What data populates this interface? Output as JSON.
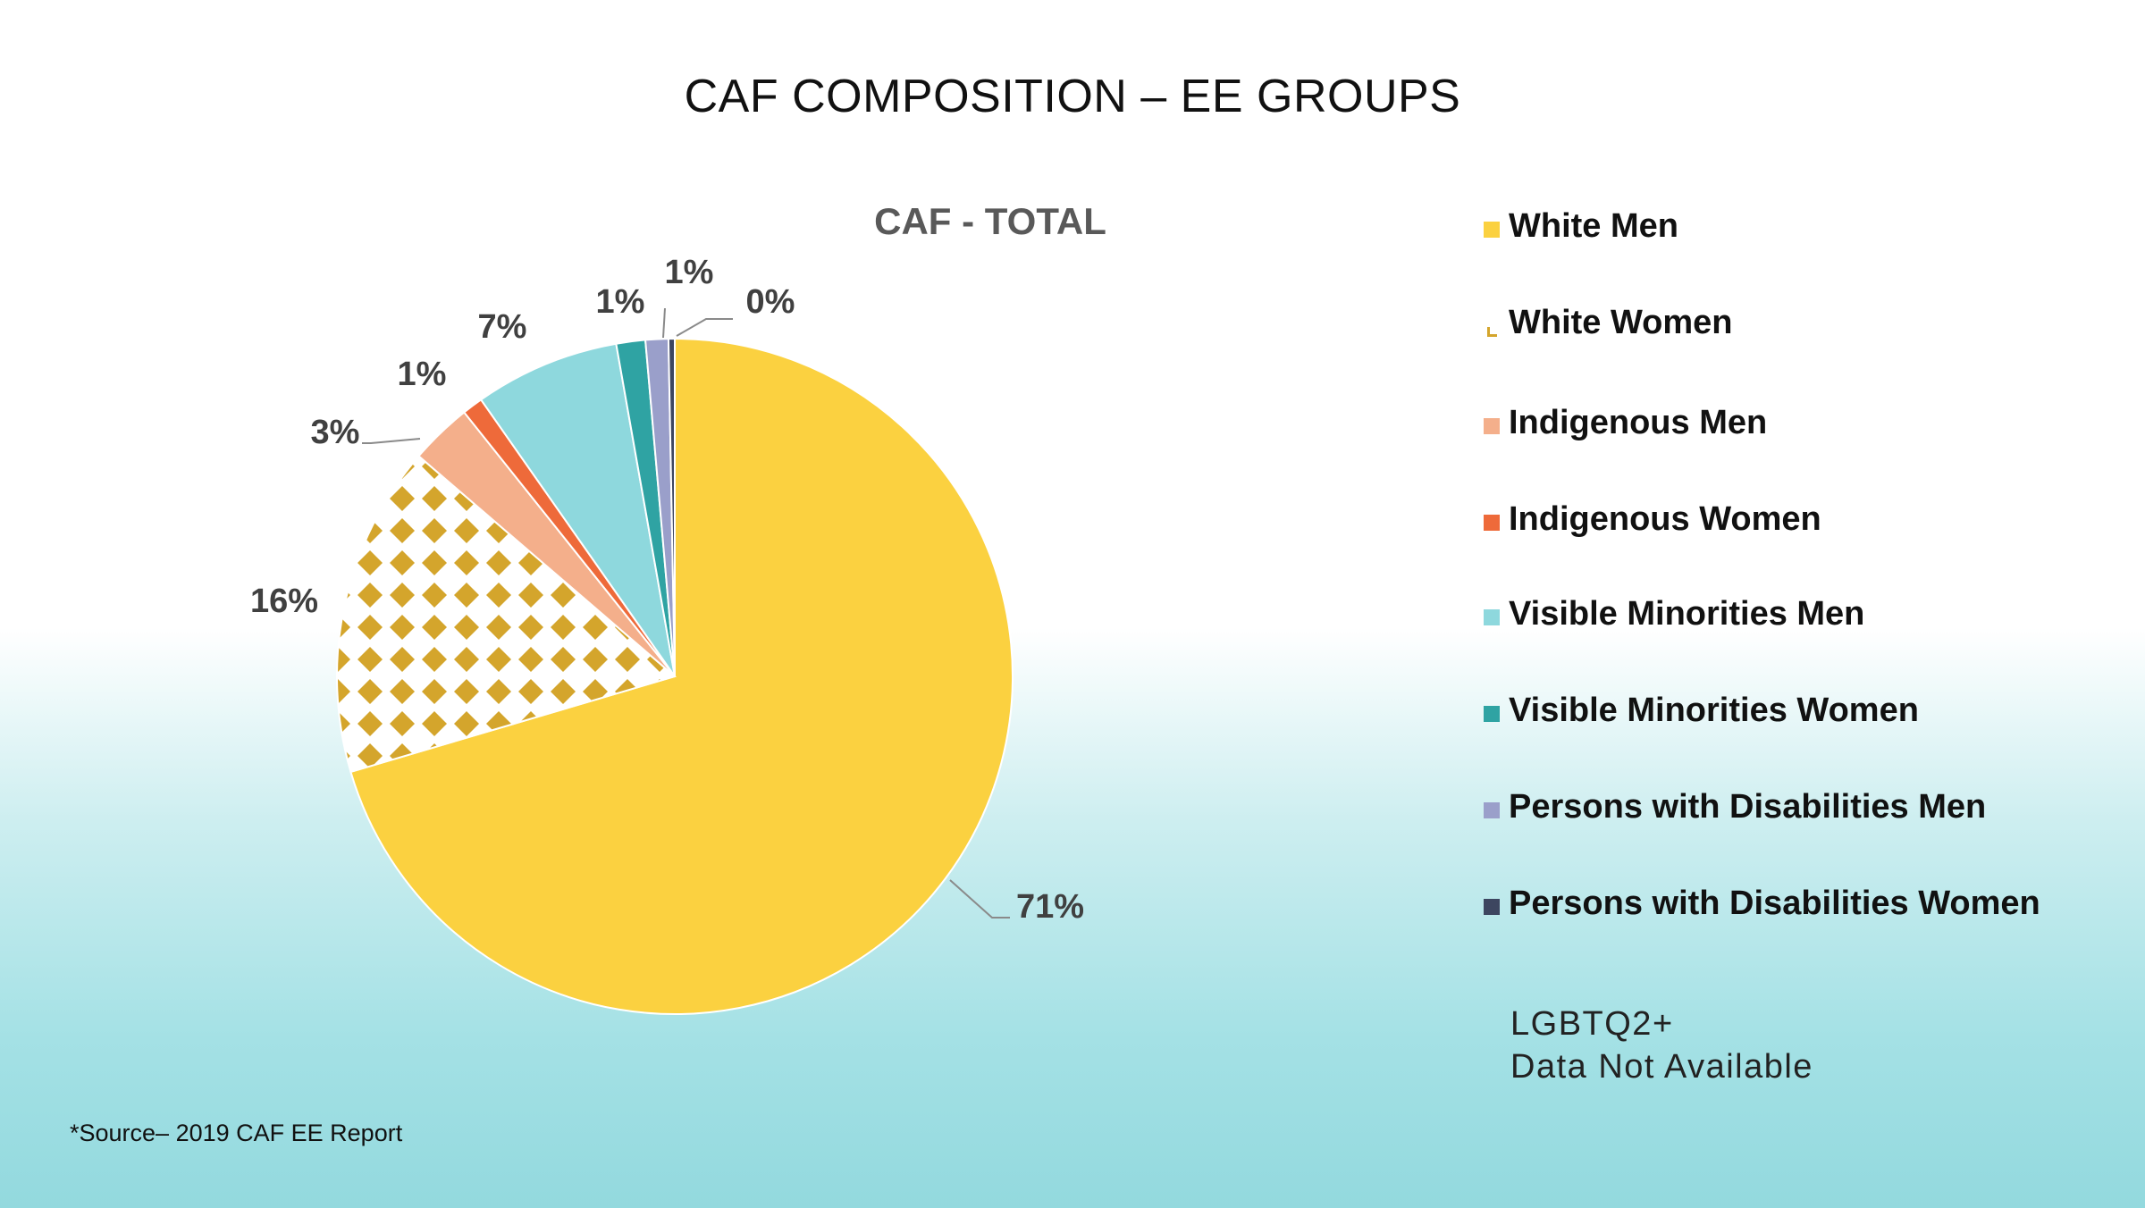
{
  "slide_title": "CAF COMPOSITION  – EE GROUPS",
  "note_lines": [
    "LGBTQ2+",
    "Data Not Available"
  ],
  "source": "*Source– 2019 CAF EE Report",
  "chart_data": {
    "type": "pie",
    "title": "CAF - TOTAL",
    "legend_position": "right",
    "slices": [
      {
        "name": "White Men",
        "value": 71,
        "label": "71%",
        "color": "#FBD140"
      },
      {
        "name": "White Women",
        "value": 16,
        "label": "16%",
        "color": "#D4A52C",
        "pattern": "diamond"
      },
      {
        "name": "Indigenous Men",
        "value": 3,
        "label": "3%",
        "color": "#F4AF8B"
      },
      {
        "name": "Indigenous Women",
        "value": 1,
        "label": "1%",
        "color": "#EE6A3A"
      },
      {
        "name": "Visible Minorities Men",
        "value": 7,
        "label": "7%",
        "color": "#8ED8DD"
      },
      {
        "name": "Visible Minorities Women",
        "value": 1.4,
        "label": "1%",
        "color": "#2FA3A3"
      },
      {
        "name": "Persons with Disabilities Men",
        "value": 1.1,
        "label": "1%",
        "color": "#9A9FCA"
      },
      {
        "name": "Persons with Disabilities Women",
        "value": 0.3,
        "label": "0%",
        "color": "#3D4660"
      }
    ]
  }
}
